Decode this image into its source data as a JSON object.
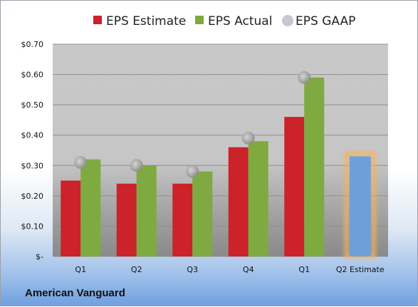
{
  "company": "American Vanguard",
  "chart_data": {
    "type": "bar",
    "categories": [
      "Q1",
      "Q2",
      "Q3",
      "Q4",
      "Q1",
      "Q2 Estimate"
    ],
    "series": [
      {
        "name": "EPS Estimate",
        "values": [
          0.25,
          0.24,
          0.24,
          0.36,
          0.46,
          null
        ],
        "color": "#cc2229"
      },
      {
        "name": "EPS Actual",
        "values": [
          0.32,
          0.3,
          0.28,
          0.38,
          0.59,
          null
        ],
        "color": "#7faa3f"
      },
      {
        "name": "EPS GAAP",
        "type": "scatter",
        "values": [
          0.31,
          0.3,
          0.28,
          0.39,
          0.59,
          null
        ],
        "color": "#a6a6a6"
      }
    ],
    "estimate": {
      "category": "Q2 Estimate",
      "value": 0.33,
      "color": "#6f9fd8",
      "glow": "#f6b25a"
    },
    "yticks": [
      "$-",
      "$0.10",
      "$0.20",
      "$0.30",
      "$0.40",
      "$0.50",
      "$0.60",
      "$0.70"
    ],
    "ylim": [
      0,
      0.7
    ],
    "grid": true,
    "legend_position": "top"
  }
}
